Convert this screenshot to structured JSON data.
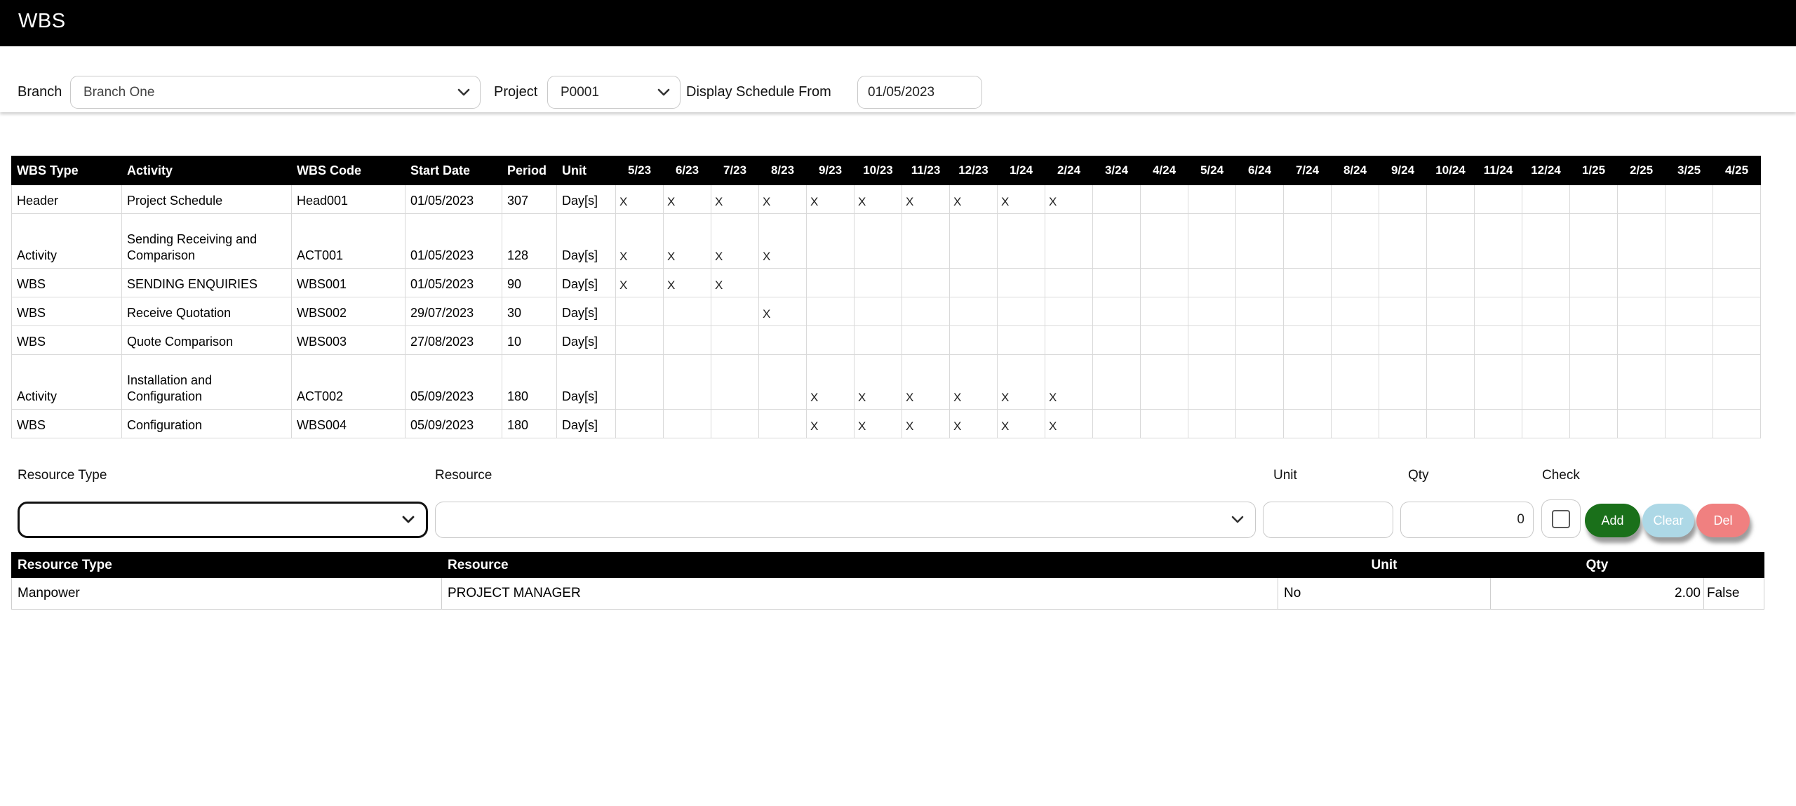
{
  "header": {
    "title": "WBS"
  },
  "toolbar": {
    "branch_label": "Branch",
    "branch_value": "Branch One",
    "project_label": "Project",
    "project_value": "P0001",
    "schedule_label": "Display Schedule From",
    "schedule_value": "01/05/2023"
  },
  "colors": {
    "activity_purple": "#8A2BE2",
    "wbs_blue": "#0000EE",
    "range_fill": "#DCE9F7",
    "selected_green": "#90EE90",
    "add_green": "#1A701A",
    "clear_blue": "#ADD8E6",
    "del_red": "#F08080"
  },
  "schedule_table": {
    "columns": [
      "WBS Type",
      "Activity",
      "WBS Code",
      "Start Date",
      "Period",
      "Unit"
    ],
    "months": [
      "5/23",
      "6/23",
      "7/23",
      "8/23",
      "9/23",
      "10/23",
      "11/23",
      "12/23",
      "1/24",
      "2/24",
      "3/24",
      "4/24",
      "5/24",
      "6/24",
      "7/24",
      "8/24",
      "9/24",
      "10/24",
      "11/24",
      "12/24",
      "1/25",
      "2/25",
      "3/25",
      "4/25"
    ],
    "mark": "X",
    "rows": [
      {
        "wbs_type": "Header",
        "activity": "Project Schedule",
        "wbs_code": "Head001",
        "start_date": "01/05/2023",
        "period": "307",
        "unit": "Day[s]",
        "row_style": "plain",
        "bar": {
          "start": 0,
          "months": 10,
          "style": "rangebar",
          "partial": true,
          "mark": "X"
        }
      },
      {
        "wbs_type": "Activity",
        "activity": "Sending Receiving and Comparison",
        "wbs_code": "ACT001",
        "start_date": "01/05/2023",
        "period": "128",
        "unit": "Day[s]",
        "row_style": "tall",
        "bar": {
          "start": 0,
          "months": 4,
          "style": "actbar",
          "mark": "X"
        }
      },
      {
        "wbs_type": "WBS",
        "activity": "SENDING ENQUIRIES",
        "wbs_code": "WBS001",
        "start_date": "01/05/2023",
        "period": "90",
        "unit": "Day[s]",
        "row_style": "plain",
        "bar": {
          "start": 0,
          "months": 3,
          "style": "wbsbar",
          "mark": "X"
        }
      },
      {
        "wbs_type": "WBS",
        "activity": "Receive Quotation",
        "wbs_code": "WBS002",
        "start_date": "29/07/2023",
        "period": "30",
        "unit": "Day[s]",
        "row_style": "plain",
        "bar": {
          "start": 3,
          "months": 1,
          "style": "wbsbar",
          "mark": "X"
        }
      },
      {
        "wbs_type": "WBS",
        "activity": "Quote Comparison",
        "wbs_code": "WBS003",
        "start_date": "27/08/2023",
        "period": "10",
        "unit": "Day[s]",
        "row_style": "plain",
        "bar": null
      },
      {
        "wbs_type": "Activity",
        "activity": "Installation and Configuration",
        "wbs_code": "ACT002",
        "start_date": "05/09/2023",
        "period": "180",
        "unit": "Day[s]",
        "row_style": "tall",
        "bar": {
          "start": 4,
          "months": 6,
          "style": "actbar",
          "mark": "X"
        }
      },
      {
        "wbs_type": "WBS",
        "activity": "Configuration",
        "wbs_code": "WBS004",
        "start_date": "05/09/2023",
        "period": "180",
        "unit": "Day[s]",
        "row_style": "highlight",
        "bar": {
          "start": 4,
          "months": 6,
          "style": "wbsbar",
          "mark": "X"
        }
      }
    ]
  },
  "resource_form": {
    "resource_type_label": "Resource Type",
    "resource_label": "Resource",
    "unit_label": "Unit",
    "qty_label": "Qty",
    "check_label": "Check",
    "resource_type_value": "",
    "resource_value": "",
    "unit_value": "",
    "qty_value": "0",
    "check_checked": false,
    "add_label": "Add",
    "clear_label": "Clear",
    "del_label": "Del"
  },
  "resource_table": {
    "columns": [
      "Resource Type",
      "Resource",
      "Unit",
      "Qty"
    ],
    "rows": [
      {
        "resource_type": "Manpower",
        "resource": "PROJECT MANAGER",
        "unit": "No",
        "qty": "2.00",
        "check": "False"
      }
    ]
  }
}
